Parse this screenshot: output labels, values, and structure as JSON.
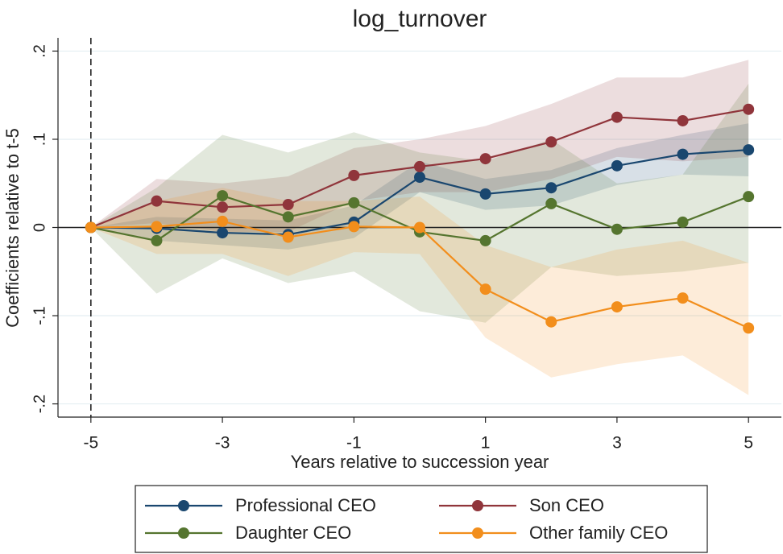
{
  "chart_data": {
    "type": "line",
    "title": "log_turnover",
    "x_label": "Years relative to succession year",
    "y_label": "Coefficients relative to t-5",
    "x": [
      -5,
      -4,
      -3,
      -2,
      -1,
      0,
      1,
      2,
      3,
      4,
      5
    ],
    "xlim": [
      -5.5,
      5.5
    ],
    "xticks": [
      -5,
      -3,
      -1,
      1,
      3,
      5
    ],
    "ylim": [
      -0.215,
      0.215
    ],
    "yticks": [
      {
        "value": 0.2,
        "label": ".2"
      },
      {
        "value": 0.1,
        "label": ".1"
      },
      0,
      {
        "value": -0.1,
        "label": "-.1"
      },
      {
        "value": -0.2,
        "label": "-.2"
      }
    ],
    "grid": true,
    "hline": 0,
    "vline": -5,
    "legend": "bottom",
    "series": [
      {
        "name": "Professional CEO",
        "color": "#1a476f",
        "values": [
          0,
          -0.001,
          -0.006,
          -0.008,
          0.006,
          0.057,
          0.038,
          0.045,
          0.07,
          0.083,
          0.088
        ],
        "upper": [
          0,
          0.012,
          0.01,
          0.008,
          0.025,
          0.075,
          0.055,
          0.065,
          0.09,
          0.105,
          0.118
        ],
        "lower": [
          0,
          -0.015,
          -0.02,
          -0.025,
          -0.012,
          0.04,
          0.02,
          0.025,
          0.048,
          0.06,
          0.058
        ]
      },
      {
        "name": "Son CEO",
        "color": "#90353b",
        "values": [
          0,
          0.03,
          0.023,
          0.026,
          0.059,
          0.069,
          0.078,
          0.097,
          0.125,
          0.121,
          0.134
        ],
        "upper": [
          0,
          0.055,
          0.05,
          0.058,
          0.09,
          0.1,
          0.115,
          0.14,
          0.17,
          0.17,
          0.19
        ],
        "lower": [
          0,
          0.005,
          -0.005,
          -0.005,
          0.03,
          0.04,
          0.04,
          0.055,
          0.08,
          0.075,
          0.08
        ]
      },
      {
        "name": "Daughter CEO",
        "color": "#55752f",
        "values": [
          0,
          -0.015,
          0.036,
          0.012,
          0.028,
          -0.005,
          -0.015,
          0.027,
          -0.002,
          0.006,
          0.035
        ],
        "upper": [
          0,
          0.045,
          0.105,
          0.085,
          0.108,
          0.085,
          0.075,
          0.1,
          0.05,
          0.06,
          0.163
        ],
        "lower": [
          0,
          -0.075,
          -0.035,
          -0.063,
          -0.05,
          -0.095,
          -0.108,
          -0.045,
          -0.055,
          -0.05,
          -0.04
        ]
      },
      {
        "name": "Other family CEO",
        "color": "#f28e1c",
        "values": [
          0,
          0.001,
          0.007,
          -0.011,
          0.001,
          0.0,
          -0.07,
          -0.107,
          -0.09,
          -0.08,
          -0.114
        ],
        "upper": [
          0,
          0.03,
          0.045,
          0.03,
          0.03,
          0.035,
          -0.02,
          -0.045,
          -0.025,
          -0.015,
          -0.04
        ],
        "lower": [
          0,
          -0.03,
          -0.03,
          -0.055,
          -0.028,
          -0.03,
          -0.125,
          -0.17,
          -0.155,
          -0.145,
          -0.19
        ]
      }
    ]
  }
}
